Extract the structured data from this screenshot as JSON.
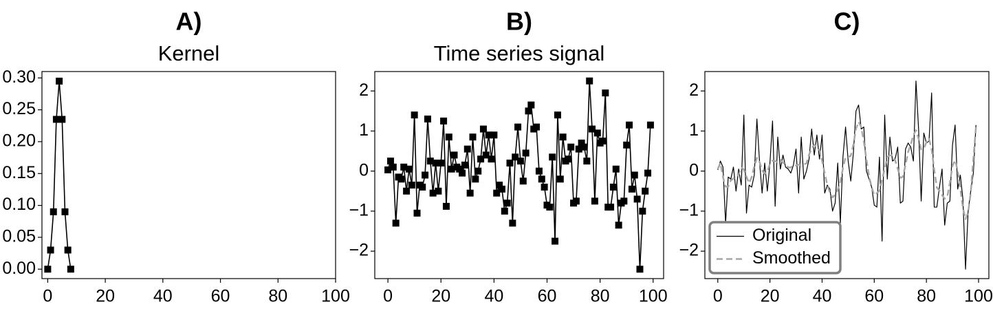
{
  "chart_data": [
    {
      "type": "line",
      "panel_label": "A)",
      "title": "Kernel",
      "marker": "square",
      "color": "#000000",
      "x": [
        0,
        1,
        2,
        3,
        4,
        5,
        6,
        7,
        8
      ],
      "values": [
        0,
        0.03,
        0.09,
        0.235,
        0.295,
        0.235,
        0.09,
        0.03,
        0
      ],
      "xlim": [
        -2,
        100
      ],
      "ylim": [
        -0.0148,
        0.31
      ],
      "xticks": [
        0,
        20,
        40,
        60,
        80,
        100
      ],
      "yticks": [
        {
          "value": 0,
          "label": "0.00"
        },
        {
          "value": 0.05,
          "label": "0.05"
        },
        {
          "value": 0.1,
          "label": "0.10"
        },
        {
          "value": 0.15,
          "label": "0.15"
        },
        {
          "value": 0.2,
          "label": "0.20"
        },
        {
          "value": 0.25,
          "label": "0.25"
        },
        {
          "value": 0.3,
          "label": "0.30"
        }
      ]
    },
    {
      "type": "line",
      "panel_label": "B)",
      "title": "Time series signal",
      "marker": "square",
      "color": "#000000",
      "x": [
        0,
        1,
        2,
        3,
        4,
        5,
        6,
        7,
        8,
        9,
        10,
        11,
        12,
        13,
        14,
        15,
        16,
        17,
        18,
        19,
        20,
        21,
        22,
        23,
        24,
        25,
        26,
        27,
        28,
        29,
        30,
        31,
        32,
        33,
        34,
        35,
        36,
        37,
        38,
        39,
        40,
        41,
        42,
        43,
        44,
        45,
        46,
        47,
        48,
        49,
        50,
        51,
        52,
        53,
        54,
        55,
        56,
        57,
        58,
        59,
        60,
        61,
        62,
        63,
        64,
        65,
        66,
        67,
        68,
        69,
        70,
        71,
        72,
        73,
        74,
        75,
        76,
        77,
        78,
        79,
        80,
        81,
        82,
        83,
        84,
        85,
        86,
        87,
        88,
        89,
        90,
        91,
        92,
        93,
        94,
        95,
        96,
        97,
        98,
        99
      ],
      "values": [
        0.03,
        0.25,
        0.1,
        -1.3,
        -0.15,
        -0.2,
        0.1,
        -0.5,
        0.05,
        -0.35,
        1.4,
        -1.05,
        -0.35,
        -0.4,
        -0.1,
        1.3,
        0.25,
        -0.55,
        0.2,
        -0.5,
        0.2,
        1.25,
        -0.88,
        0.85,
        0.05,
        0.4,
        0.1,
        0.05,
        -0.05,
        0.15,
        0.55,
        -0.55,
        0.85,
        -0.2,
        0,
        0.3,
        1.05,
        0.4,
        0.9,
        0.3,
        0.9,
        -0.55,
        -0.35,
        -0.45,
        -1,
        -0.8,
        0.2,
        -1.3,
        0.35,
        1.1,
        0.25,
        -0.25,
        0.45,
        1.5,
        1.65,
        1.05,
        1.1,
        0,
        -0.2,
        -0.4,
        -0.85,
        -0.9,
        0.35,
        -1.75,
        1.4,
        -0.2,
        0.85,
        0.25,
        0.3,
        0.6,
        -0.8,
        -0.75,
        0.55,
        0.7,
        0.6,
        0.25,
        2.25,
        1.05,
        -0.75,
        0.95,
        0.7,
        0.75,
        1.95,
        -0.9,
        -0.9,
        -0.4,
        0.05,
        -1.35,
        -0.8,
        -0.75,
        0.65,
        1.15,
        -0.45,
        -0.1,
        -0.7,
        -2.45,
        -1,
        -0.5,
        -0.05,
        1.15
      ],
      "xlim": [
        -4.95,
        103.95
      ],
      "ylim": [
        -2.685,
        2.485
      ],
      "xticks": [
        0,
        20,
        40,
        60,
        80,
        100
      ],
      "yticks": [
        {
          "value": -2,
          "label": "−2"
        },
        {
          "value": -1,
          "label": "−1"
        },
        0,
        1,
        2
      ]
    },
    {
      "type": "line",
      "panel_label": "C)",
      "legend": "lower left",
      "x": [
        0,
        1,
        2,
        3,
        4,
        5,
        6,
        7,
        8,
        9,
        10,
        11,
        12,
        13,
        14,
        15,
        16,
        17,
        18,
        19,
        20,
        21,
        22,
        23,
        24,
        25,
        26,
        27,
        28,
        29,
        30,
        31,
        32,
        33,
        34,
        35,
        36,
        37,
        38,
        39,
        40,
        41,
        42,
        43,
        44,
        45,
        46,
        47,
        48,
        49,
        50,
        51,
        52,
        53,
        54,
        55,
        56,
        57,
        58,
        59,
        60,
        61,
        62,
        63,
        64,
        65,
        66,
        67,
        68,
        69,
        70,
        71,
        72,
        73,
        74,
        75,
        76,
        77,
        78,
        79,
        80,
        81,
        82,
        83,
        84,
        85,
        86,
        87,
        88,
        89,
        90,
        91,
        92,
        93,
        94,
        95,
        96,
        97,
        98,
        99
      ],
      "series": [
        {
          "name": "Original",
          "color": "#000000",
          "linestyle": "solid",
          "values": [
            0.03,
            0.25,
            0.1,
            -1.3,
            -0.15,
            -0.2,
            0.1,
            -0.5,
            0.05,
            -0.35,
            1.4,
            -1.05,
            -0.35,
            -0.4,
            -0.1,
            1.3,
            0.25,
            -0.55,
            0.2,
            -0.5,
            0.2,
            1.25,
            -0.88,
            0.85,
            0.05,
            0.4,
            0.1,
            0.05,
            -0.05,
            0.15,
            0.55,
            -0.55,
            0.85,
            -0.2,
            0,
            0.3,
            1.05,
            0.4,
            0.9,
            0.3,
            0.9,
            -0.55,
            -0.35,
            -0.45,
            -1,
            -0.8,
            0.2,
            -1.3,
            0.35,
            1.1,
            0.25,
            -0.25,
            0.45,
            1.5,
            1.65,
            1.05,
            1.1,
            0,
            -0.2,
            -0.4,
            -0.85,
            -0.9,
            0.35,
            -1.75,
            1.4,
            -0.2,
            0.85,
            0.25,
            0.3,
            0.6,
            -0.8,
            -0.75,
            0.55,
            0.7,
            0.6,
            0.25,
            2.25,
            1.05,
            -0.75,
            0.95,
            0.7,
            0.75,
            1.95,
            -0.9,
            -0.9,
            -0.4,
            0.05,
            -1.35,
            -0.8,
            -0.75,
            0.65,
            1.15,
            -0.45,
            -0.1,
            -0.7,
            -2.45,
            -1,
            -0.5,
            -0.05,
            1.15
          ]
        },
        {
          "name": "Smoothed",
          "color": "#a6a6a6",
          "linestyle": "dashed",
          "values": [
            0.05,
            0.2,
            -0.15,
            -0.39,
            -0.39,
            -0.23,
            -0.19,
            -0.13,
            -0.09,
            0.09,
            0.04,
            -0.14,
            -0.3,
            -0.15,
            0.12,
            0.33,
            0.23,
            0.02,
            -0.07,
            -0.01,
            0.18,
            0.26,
            0.25,
            0.22,
            0.28,
            0.21,
            0.17,
            0.09,
            0.09,
            0.15,
            0.14,
            0.16,
            0.14,
            0.17,
            0.19,
            0.41,
            0.56,
            0.66,
            0.6,
            0.52,
            0.26,
            -0.05,
            -0.36,
            -0.54,
            -0.66,
            -0.59,
            -0.47,
            -0.26,
            0.07,
            0.35,
            0.35,
            0.38,
            0.66,
            1.06,
            1.23,
            1.1,
            0.74,
            0.29,
            -0.13,
            -0.4,
            -0.6,
            -0.55,
            -0.49,
            -0.21,
            0.05,
            0.35,
            0.39,
            0.4,
            0.27,
            0.06,
            -0.17,
            -0.14,
            0.16,
            0.48,
            0.66,
            0.9,
            1.02,
            0.81,
            0.54,
            0.56,
            0.72,
            0.8,
            0.55,
            0.03,
            -0.41,
            -0.49,
            -0.6,
            -0.69,
            -0.65,
            -0.29,
            0.13,
            0.27,
            0.01,
            -0.43,
            -0.92,
            -1.2,
            -1.03,
            -0.54,
            0.3,
            1.1
          ]
        }
      ],
      "xlim": [
        -4.95,
        103.95
      ],
      "ylim": [
        -2.685,
        2.485
      ],
      "xticks": [
        0,
        20,
        40,
        60,
        80,
        100
      ],
      "yticks": [
        {
          "value": -2,
          "label": "−2"
        },
        {
          "value": -1,
          "label": "−1"
        },
        0,
        1,
        2
      ]
    }
  ]
}
